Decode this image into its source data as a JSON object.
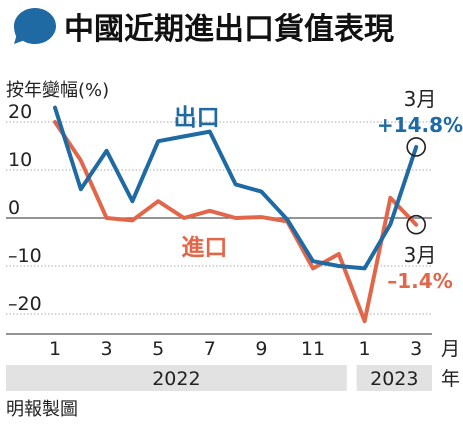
{
  "title": "中國近期進出口貨值表現",
  "chart_data": {
    "type": "line",
    "ylabel": "按年變幅(%)",
    "yticks": [
      "20",
      "10",
      "0",
      "–10",
      "–20"
    ],
    "ytick_values": [
      20,
      10,
      0,
      -10,
      -20
    ],
    "ylim": [
      -25,
      25
    ],
    "x_tick_labels": [
      "1",
      "3",
      "5",
      "7",
      "9",
      "11",
      "1",
      "3"
    ],
    "x_tick_index": [
      0,
      2,
      4,
      6,
      8,
      10,
      12,
      14
    ],
    "x_unit": "月",
    "years": [
      {
        "label": "2022",
        "from": 0,
        "to": 11
      },
      {
        "label": "2023",
        "from": 12,
        "to": 14
      }
    ],
    "x": [
      "2022-01",
      "2022-02",
      "2022-03",
      "2022-04",
      "2022-05",
      "2022-06",
      "2022-07",
      "2022-08",
      "2022-09",
      "2022-10",
      "2022-11",
      "2022-12",
      "2023-01",
      "2023-02",
      "2023-03"
    ],
    "series": [
      {
        "name": "出口",
        "color": "#1f6aa3",
        "values": [
          23,
          6,
          14,
          3.5,
          16,
          17,
          18,
          7,
          5.5,
          -0.3,
          -9,
          -10,
          -10.5,
          -1.3,
          14.8
        ]
      },
      {
        "name": "進口",
        "color": "#e2674a",
        "values": [
          20,
          12,
          0,
          -0.5,
          3.5,
          0,
          1.5,
          0,
          0.2,
          -0.7,
          -10.5,
          -7.5,
          -21.5,
          4.2,
          -1.4
        ]
      }
    ],
    "annotations": [
      {
        "series": 0,
        "month": "3月",
        "value": "+14.8%"
      },
      {
        "series": 1,
        "month": "3月",
        "value": "–1.4%"
      }
    ],
    "grid": true,
    "source": "明報製圖"
  }
}
